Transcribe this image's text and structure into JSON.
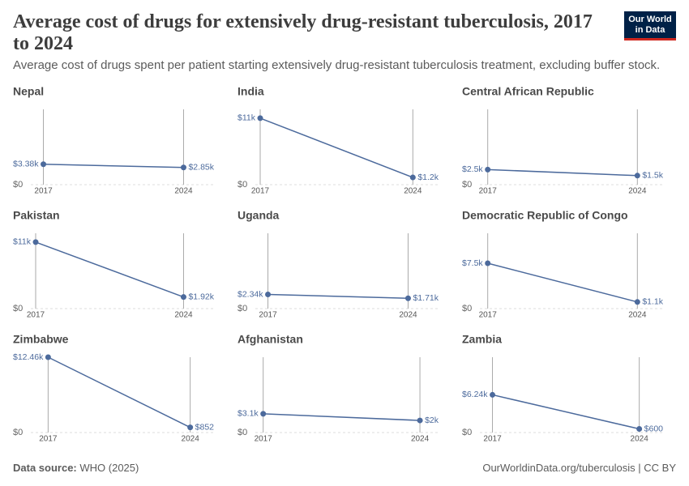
{
  "title": "Average cost of drugs for extensively drug-resistant tuberculosis, 2017 to 2024",
  "subtitle": "Average cost of drugs spent per patient starting extensively drug-resistant tuberculosis treatment, excluding buffer stock.",
  "logo": "Our World in Data",
  "source_label": "Data source:",
  "source": "WHO (2025)",
  "url": "OurWorldinData.org/tuberculosis | CC BY",
  "chart_data": [
    {
      "type": "line",
      "title": "Nepal",
      "categories": [
        "2017",
        "2024"
      ],
      "values": [
        3380,
        2850
      ],
      "value_labels": [
        "$3.38k",
        "$2.85k"
      ],
      "color": "#4c6a9c",
      "ylim": [
        0,
        12460
      ],
      "yticks": [
        {
          "value": 0,
          "label": "$0"
        }
      ]
    },
    {
      "type": "line",
      "title": "India",
      "categories": [
        "2017",
        "2024"
      ],
      "values": [
        11000,
        1200
      ],
      "value_labels": [
        "$11k",
        "$1.2k"
      ],
      "color": "#4c6a9c",
      "ylim": [
        0,
        12460
      ],
      "yticks": [
        {
          "value": 0,
          "label": "$0"
        }
      ]
    },
    {
      "type": "line",
      "title": "Central African Republic",
      "categories": [
        "2017",
        "2024"
      ],
      "values": [
        2500,
        1500
      ],
      "value_labels": [
        "$2.5k",
        "$1.5k"
      ],
      "color": "#4c6a9c",
      "ylim": [
        0,
        12460
      ],
      "yticks": [
        {
          "value": 0,
          "label": "$0"
        }
      ]
    },
    {
      "type": "line",
      "title": "Pakistan",
      "categories": [
        "2017",
        "2024"
      ],
      "values": [
        11000,
        1920
      ],
      "value_labels": [
        "$11k",
        "$1.92k"
      ],
      "color": "#4c6a9c",
      "ylim": [
        0,
        12460
      ],
      "yticks": [
        {
          "value": 0,
          "label": "$0"
        }
      ]
    },
    {
      "type": "line",
      "title": "Uganda",
      "categories": [
        "2017",
        "2024"
      ],
      "values": [
        2340,
        1710
      ],
      "value_labels": [
        "$2.34k",
        "$1.71k"
      ],
      "color": "#4c6a9c",
      "ylim": [
        0,
        12460
      ],
      "yticks": [
        {
          "value": 0,
          "label": "$0"
        }
      ]
    },
    {
      "type": "line",
      "title": "Democratic Republic of Congo",
      "categories": [
        "2017",
        "2024"
      ],
      "values": [
        7500,
        1100
      ],
      "value_labels": [
        "$7.5k",
        "$1.1k"
      ],
      "color": "#4c6a9c",
      "ylim": [
        0,
        12460
      ],
      "yticks": [
        {
          "value": 0,
          "label": "$0"
        }
      ]
    },
    {
      "type": "line",
      "title": "Zimbabwe",
      "categories": [
        "2017",
        "2024"
      ],
      "values": [
        12460,
        852
      ],
      "value_labels": [
        "$12.46k",
        "$852"
      ],
      "color": "#4c6a9c",
      "ylim": [
        0,
        12460
      ],
      "yticks": [
        {
          "value": 0,
          "label": "$0"
        }
      ]
    },
    {
      "type": "line",
      "title": "Afghanistan",
      "categories": [
        "2017",
        "2024"
      ],
      "values": [
        3100,
        2000
      ],
      "value_labels": [
        "$3.1k",
        "$2k"
      ],
      "color": "#4c6a9c",
      "ylim": [
        0,
        12460
      ],
      "yticks": [
        {
          "value": 0,
          "label": "$0"
        }
      ]
    },
    {
      "type": "line",
      "title": "Zambia",
      "categories": [
        "2017",
        "2024"
      ],
      "values": [
        6240,
        600
      ],
      "value_labels": [
        "$6.24k",
        "$600"
      ],
      "color": "#4c6a9c",
      "ylim": [
        0,
        12460
      ],
      "yticks": [
        {
          "value": 0,
          "label": "$0"
        }
      ]
    }
  ]
}
